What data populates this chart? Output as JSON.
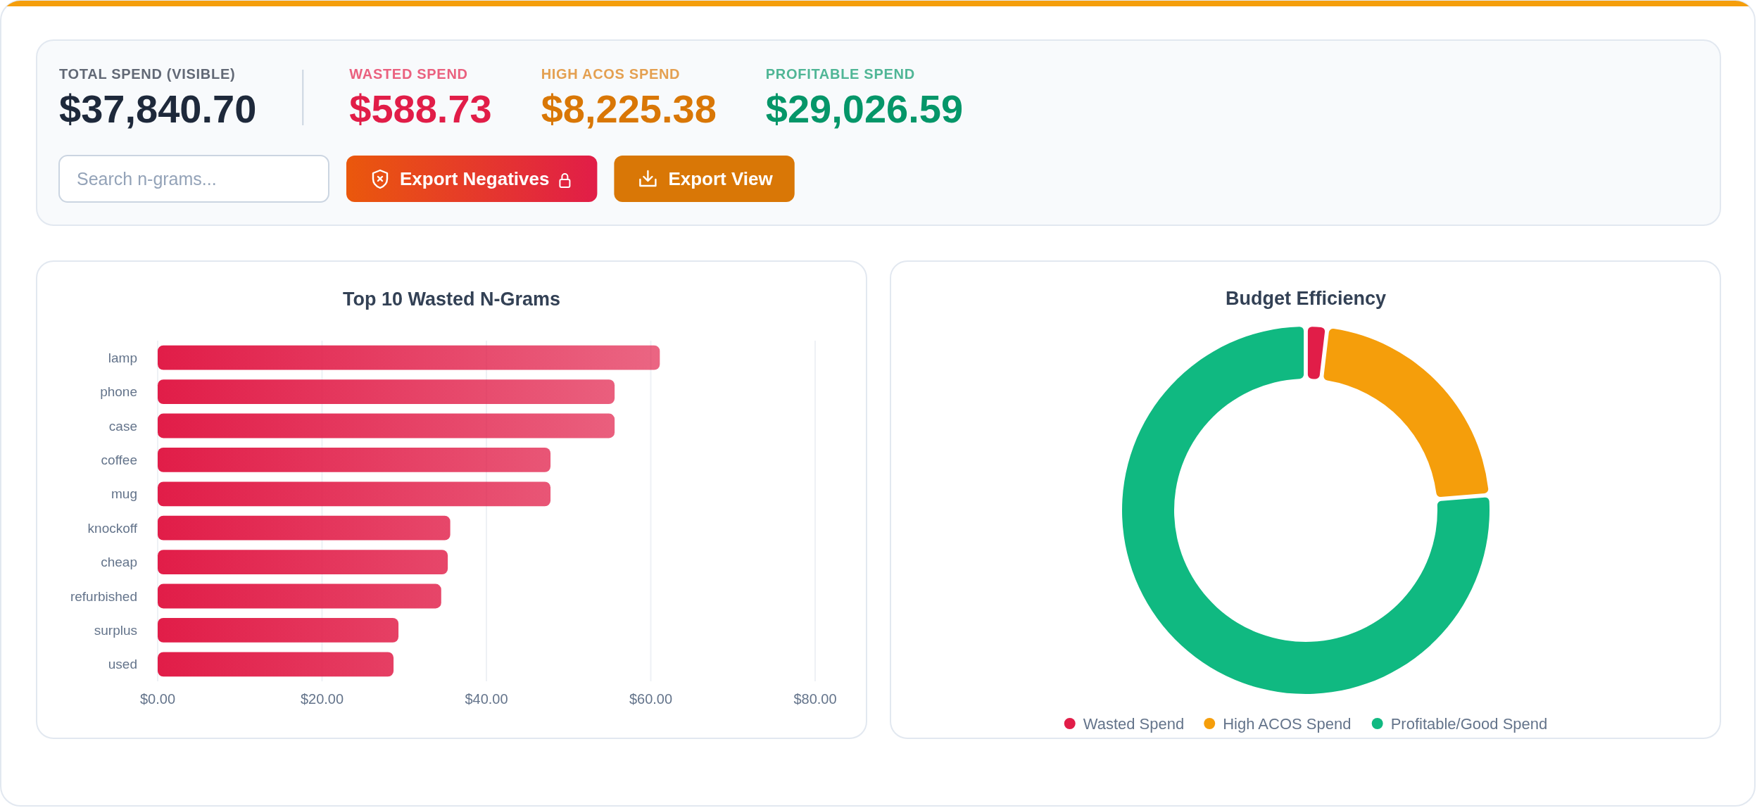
{
  "chart_data": [
    {
      "type": "other",
      "categories": [
        "TOTAL SPEND (VISIBLE)",
        "WASTED SPEND",
        "HIGH ACOS SPEND",
        "PROFITABLE SPEND"
      ],
      "value_labels": [
        "$37,840.70",
        "$588.73",
        "$8,225.38",
        "$29,026.59"
      ],
      "colors": [
        "#1e293b",
        "#e11d48",
        "#d97706",
        "#059669"
      ],
      "annotations": [
        "Search n-grams...",
        "Export Negatives",
        "Export View"
      ]
    },
    {
      "type": "bar",
      "orientation": "horizontal",
      "title": "Top 10 Wasted N-Grams",
      "categories": [
        "lamp",
        "phone",
        "case",
        "coffee",
        "mug",
        "knockoff",
        "cheap",
        "refurbished",
        "surplus",
        "used"
      ],
      "values": [
        61.1,
        55.6,
        55.6,
        47.8,
        47.8,
        35.6,
        35.3,
        34.5,
        29.3,
        28.7
      ],
      "color": "#e11d48",
      "xlim": [
        0,
        80
      ],
      "xticks": [
        {
          "value": 0,
          "label": "$0.00"
        },
        {
          "value": 20,
          "label": "$20.00"
        },
        {
          "value": 40,
          "label": "$40.00"
        },
        {
          "value": 60,
          "label": "$60.00"
        },
        {
          "value": 80,
          "label": "$80.00"
        }
      ],
      "grid": "x"
    },
    {
      "type": "donut",
      "title": "Budget Efficiency",
      "categories": [
        "Wasted Spend",
        "High ACOS Spend",
        "Profitable/Good Spend"
      ],
      "values": [
        1.6,
        21.7,
        76.7
      ],
      "colors": [
        "#e11d48",
        "#f59e0b",
        "#10b981"
      ],
      "legend": "bottom"
    }
  ]
}
